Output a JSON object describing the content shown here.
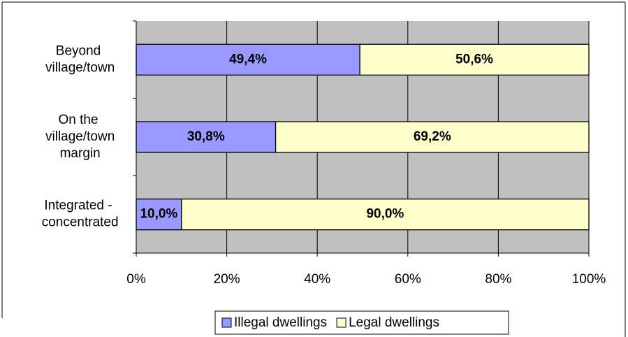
{
  "chart_data": {
    "type": "stacked-barh",
    "categories": [
      "Beyond\nvillage/town",
      "On the\nvillage/town\nmargin",
      "Integrated -\nconcentrated"
    ],
    "series": [
      {
        "name": "Illegal dwellings",
        "color": "#9999ff",
        "values": [
          49.4,
          30.8,
          10.0
        ],
        "value_labels": [
          "49,4%",
          "30,8%",
          "10,0%"
        ]
      },
      {
        "name": "Legal dwellings",
        "color": "#ffffcc",
        "values": [
          50.6,
          69.2,
          90.0
        ],
        "value_labels": [
          "50,6%",
          "69,2%",
          "90,0%"
        ]
      }
    ],
    "xlim": [
      0,
      100
    ],
    "xticks": [
      {
        "value": 0,
        "label": "0%"
      },
      {
        "value": 20,
        "label": "20%"
      },
      {
        "value": 40,
        "label": "40%"
      },
      {
        "value": 60,
        "label": "60%"
      },
      {
        "value": 80,
        "label": "80%"
      },
      {
        "value": 100,
        "label": "100%"
      }
    ],
    "grid": true,
    "legend": "bottom"
  }
}
